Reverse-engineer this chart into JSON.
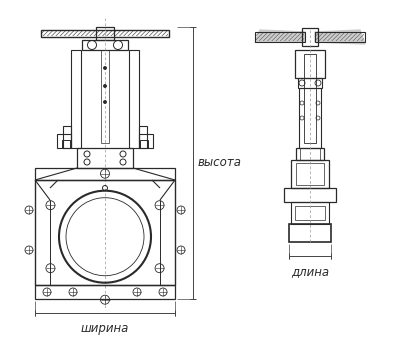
{
  "bg_color": "#ffffff",
  "line_color": "#2a2a2a",
  "dim_color": "#444444",
  "hatch_color": "#555555",
  "text_color": "#2a2a2a",
  "label_shirina": "ширина",
  "label_vysota": "высота",
  "label_dlina": "длина",
  "font_size": 8.5,
  "fig_width": 4.0,
  "fig_height": 3.46,
  "dpi": 100
}
